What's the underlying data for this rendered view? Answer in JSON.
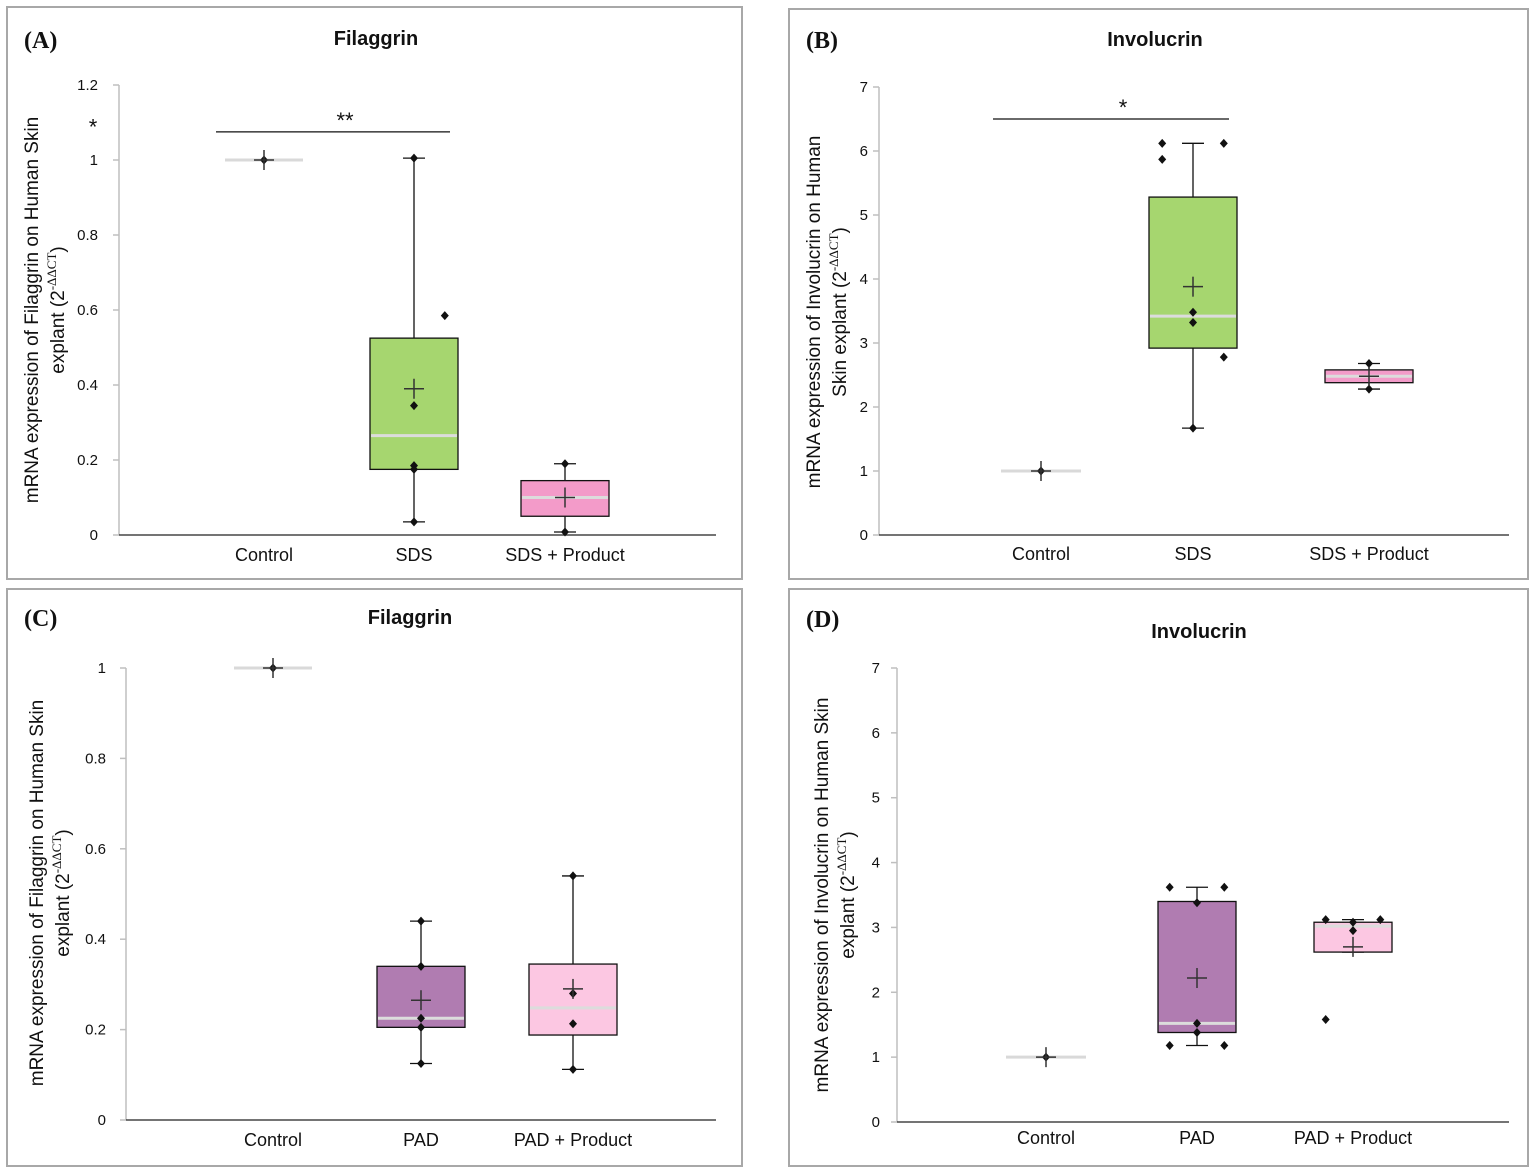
{
  "chart_data": [
    {
      "type": "box",
      "panel": "(A)",
      "title": "Filaggrin",
      "ylabel": "mRNA expression of Filaggrin on Human Skin explant (2",
      "ylabel_line1": "mRNA expression of Filaggrin on Human Skin",
      "ylabel_line2": "explant (2",
      "ylabel_sup": "-ΔΔCT",
      "ylabel_close": ")",
      "ylim": [
        0,
        1.2
      ],
      "yticks": [
        "0",
        "0.2",
        "0.4",
        "0.6",
        "0.8",
        "1",
        "1.2"
      ],
      "categories": [
        "Control",
        "SDS",
        "SDS + Product"
      ],
      "series": [
        {
          "name": "Control",
          "color": "none",
          "q1": 1.0,
          "median": 1.0,
          "q3": 1.0,
          "min": 1.0,
          "max": 1.0,
          "mean": 1.0,
          "points": [
            1.0
          ]
        },
        {
          "name": "SDS",
          "color": "#a6d66f",
          "q1": 0.175,
          "median": 0.265,
          "q3": 0.525,
          "min": 0.035,
          "max": 1.005,
          "mean": 0.39,
          "points": [
            1.005,
            0.585,
            0.345,
            0.185,
            0.175,
            0.035
          ]
        },
        {
          "name": "SDS + Product",
          "color": "#f39bc9",
          "q1": 0.05,
          "median": 0.1,
          "q3": 0.145,
          "min": 0.008,
          "max": 0.19,
          "mean": 0.1,
          "points": [
            0.19,
            0.008
          ]
        }
      ],
      "significance": [
        {
          "label": "**",
          "from": 0,
          "to": 1,
          "y": 1.075
        }
      ],
      "extra_marks": [
        {
          "label": "*",
          "y": 1.095
        }
      ]
    },
    {
      "type": "box",
      "panel": "(B)",
      "title": "Involucrin",
      "ylabel_line1": "mRNA expression of Involucrin on Human",
      "ylabel_line2": "Skin explant (2",
      "ylabel_sup": "-ΔΔCT",
      "ylabel_close": ")",
      "ylim": [
        0,
        7
      ],
      "yticks": [
        "0",
        "1",
        "2",
        "3",
        "4",
        "5",
        "6",
        "7"
      ],
      "categories": [
        "Control",
        "SDS",
        "SDS + Product"
      ],
      "series": [
        {
          "name": "Control",
          "color": "none",
          "q1": 1.0,
          "median": 1.0,
          "q3": 1.0,
          "min": 1.0,
          "max": 1.0,
          "mean": 1.0,
          "points": [
            1.0
          ]
        },
        {
          "name": "SDS",
          "color": "#a6d66f",
          "q1": 2.92,
          "median": 3.42,
          "q3": 5.28,
          "min": 1.67,
          "max": 6.12,
          "mean": 3.88,
          "points": [
            6.12,
            6.12,
            5.87,
            3.48,
            3.32,
            2.78,
            1.67
          ]
        },
        {
          "name": "SDS + Product",
          "color": "#f39bc9",
          "q1": 2.38,
          "median": 2.48,
          "q3": 2.58,
          "min": 2.28,
          "max": 2.68,
          "mean": 2.48,
          "points": [
            2.68,
            2.28
          ]
        }
      ],
      "significance": [
        {
          "label": "*",
          "from": 0,
          "to": 1,
          "y": 6.5
        }
      ],
      "extra_marks": []
    },
    {
      "type": "box",
      "panel": "(C)",
      "title": "Filaggrin",
      "ylabel_line1": "mRNA expression of Filaggrin on Human Skin",
      "ylabel_line2": "explant (2",
      "ylabel_sup": "-ΔΔCT",
      "ylabel_close": ")",
      "ylim": [
        0,
        1.0
      ],
      "yticks": [
        "0",
        "0.2",
        "0.4",
        "0.6",
        "0.8",
        "1"
      ],
      "categories": [
        "Control",
        "PAD",
        "PAD + Product"
      ],
      "series": [
        {
          "name": "Control",
          "color": "none",
          "q1": 1.0,
          "median": 1.0,
          "q3": 1.0,
          "min": 1.0,
          "max": 1.0,
          "mean": 1.0,
          "points": [
            1.0
          ]
        },
        {
          "name": "PAD",
          "color": "#b07cb1",
          "q1": 0.205,
          "median": 0.225,
          "q3": 0.34,
          "min": 0.125,
          "max": 0.44,
          "mean": 0.265,
          "points": [
            0.44,
            0.34,
            0.225,
            0.205,
            0.125
          ]
        },
        {
          "name": "PAD + Product",
          "color": "#fcc7e2",
          "q1": 0.188,
          "median": 0.248,
          "q3": 0.345,
          "min": 0.112,
          "max": 0.54,
          "mean": 0.29,
          "points": [
            0.54,
            0.28,
            0.213,
            0.112
          ]
        }
      ],
      "significance": [],
      "extra_marks": []
    },
    {
      "type": "box",
      "panel": "(D)",
      "title": "Involucrin",
      "ylabel_line1": "mRNA expression of Involucrin on Human Skin",
      "ylabel_line2": "explant (2",
      "ylabel_sup": "-ΔΔCT",
      "ylabel_close": ")",
      "ylim": [
        0,
        7
      ],
      "yticks": [
        "0",
        "1",
        "2",
        "3",
        "4",
        "5",
        "6",
        "7"
      ],
      "categories": [
        "Control",
        "PAD",
        "PAD + Product"
      ],
      "series": [
        {
          "name": "Control",
          "color": "none",
          "q1": 1.0,
          "median": 1.0,
          "q3": 1.0,
          "min": 1.0,
          "max": 1.0,
          "mean": 1.0,
          "points": [
            1.0
          ]
        },
        {
          "name": "PAD",
          "color": "#b07cb1",
          "q1": 1.38,
          "median": 1.52,
          "q3": 3.4,
          "min": 1.18,
          "max": 3.62,
          "mean": 2.22,
          "points": [
            3.62,
            3.62,
            3.38,
            1.52,
            1.38,
            1.18,
            1.18
          ]
        },
        {
          "name": "PAD + Product",
          "color": "#fcc7e2",
          "q1": 2.62,
          "median": 3.02,
          "q3": 3.08,
          "min": 2.62,
          "max": 3.12,
          "mean": 2.7,
          "points": [
            3.12,
            3.08,
            3.12,
            2.95,
            1.58
          ]
        }
      ],
      "significance": [],
      "extra_marks": []
    }
  ]
}
